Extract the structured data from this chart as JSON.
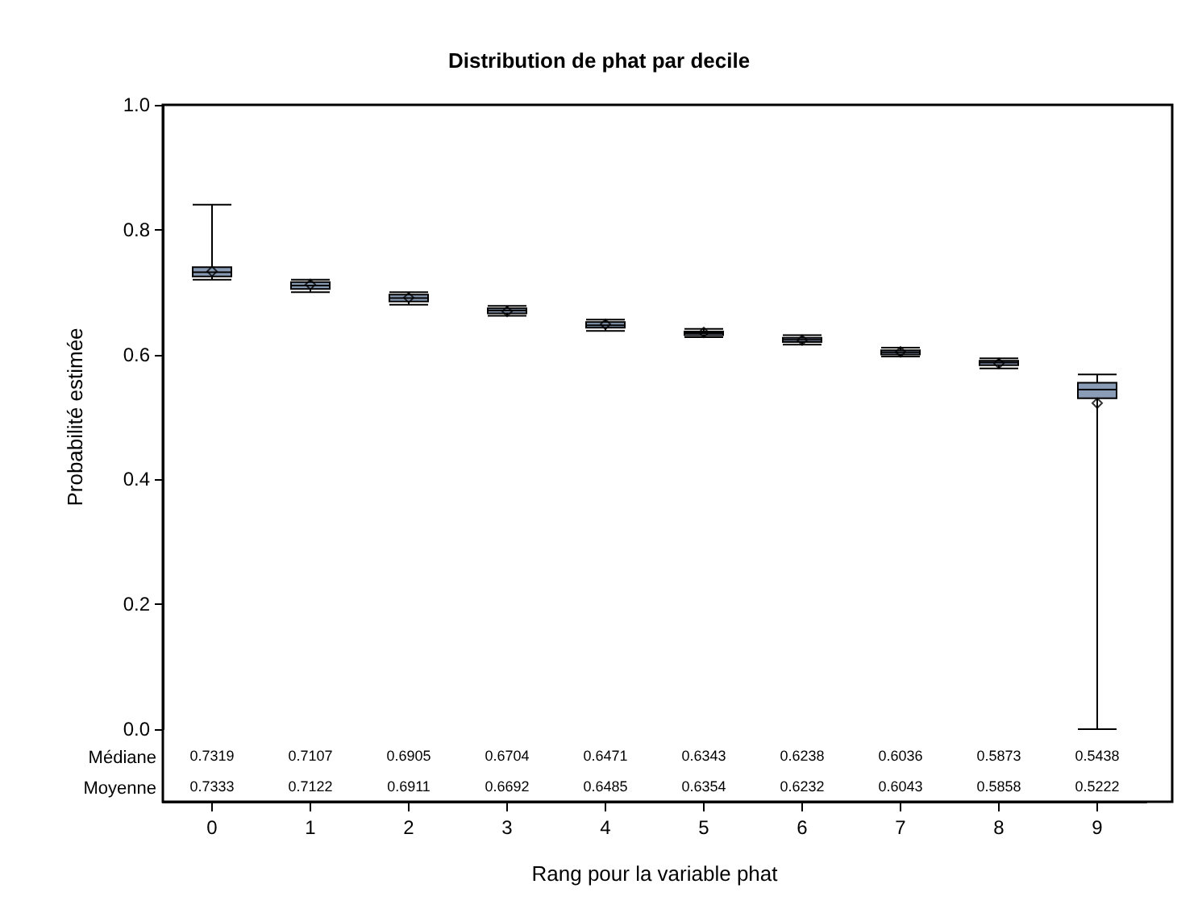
{
  "chart_data": {
    "type": "box",
    "title": "Distribution de phat par decile",
    "xlabel": "Rang pour la variable phat",
    "ylabel": "Probabilité estimée",
    "categories": [
      "0",
      "1",
      "2",
      "3",
      "4",
      "5",
      "6",
      "7",
      "8",
      "9"
    ],
    "series": [
      {
        "color": "#8a9bb5",
        "boxes": [
          {
            "low": 0.72,
            "q1": 0.725,
            "median": 0.7319,
            "q3": 0.74,
            "high": 0.84,
            "mean": 0.7333
          },
          {
            "low": 0.7,
            "q1": 0.705,
            "median": 0.7107,
            "q3": 0.716,
            "high": 0.72,
            "mean": 0.7122
          },
          {
            "low": 0.68,
            "q1": 0.685,
            "median": 0.6905,
            "q3": 0.696,
            "high": 0.7,
            "mean": 0.6911
          },
          {
            "low": 0.662,
            "q1": 0.666,
            "median": 0.6704,
            "q3": 0.674,
            "high": 0.678,
            "mean": 0.6692
          },
          {
            "low": 0.638,
            "q1": 0.643,
            "median": 0.6471,
            "q3": 0.652,
            "high": 0.656,
            "mean": 0.6485
          },
          {
            "low": 0.628,
            "q1": 0.631,
            "median": 0.6343,
            "q3": 0.637,
            "high": 0.641,
            "mean": 0.6354
          },
          {
            "low": 0.616,
            "q1": 0.62,
            "median": 0.6238,
            "q3": 0.627,
            "high": 0.631,
            "mean": 0.6232
          },
          {
            "low": 0.597,
            "q1": 0.6,
            "median": 0.6036,
            "q3": 0.607,
            "high": 0.611,
            "mean": 0.6043
          },
          {
            "low": 0.578,
            "q1": 0.583,
            "median": 0.5873,
            "q3": 0.59,
            "high": 0.594,
            "mean": 0.5858
          },
          {
            "low": 0,
            "q1": 0.53,
            "median": 0.5438,
            "q3": 0.555,
            "high": 0.568,
            "mean": 0.5222
          }
        ]
      }
    ],
    "ylim": [
      0,
      1
    ],
    "yticks": [
      {
        "value": 0,
        "label": "0.0"
      },
      {
        "value": 0.2,
        "label": "0.2"
      },
      {
        "value": 0.4,
        "label": "0.4"
      },
      {
        "value": 0.6,
        "label": "0.6"
      },
      {
        "value": 0.8,
        "label": "0.8"
      },
      {
        "value": 1,
        "label": "1.0"
      }
    ],
    "data_labels": true,
    "marker": "diamond",
    "grid": false,
    "annotations": [
      "Médiane",
      "0.7319",
      "0.7107",
      "0.6905",
      "0.6704",
      "0.6471",
      "0.6343",
      "0.6238",
      "0.6036",
      "0.5873",
      "0.5438",
      "Moyenne",
      "0.7333",
      "0.7122",
      "0.6911",
      "0.6692",
      "0.6485",
      "0.6354",
      "0.6232",
      "0.6043",
      "0.5858",
      "0.5222"
    ]
  }
}
